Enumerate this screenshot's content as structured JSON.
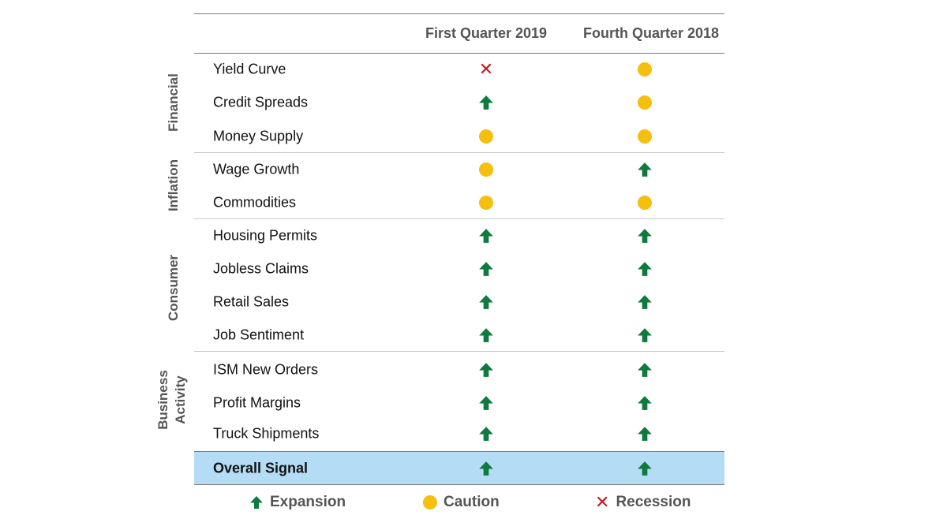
{
  "chart_data": {
    "type": "table",
    "columns": [
      "First Quarter 2019",
      "Fourth Quarter 2018"
    ],
    "groups": [
      {
        "name": "Financial",
        "rows": [
          {
            "label": "Yield Curve",
            "values": [
              "recession",
              "caution"
            ]
          },
          {
            "label": "Credit Spreads",
            "values": [
              "expansion",
              "caution"
            ]
          },
          {
            "label": "Money Supply",
            "values": [
              "caution",
              "caution"
            ]
          }
        ]
      },
      {
        "name": "Inflation",
        "rows": [
          {
            "label": "Wage Growth",
            "values": [
              "caution",
              "expansion"
            ]
          },
          {
            "label": "Commodities",
            "values": [
              "caution",
              "caution"
            ]
          }
        ]
      },
      {
        "name": "Consumer",
        "rows": [
          {
            "label": "Housing Permits",
            "values": [
              "expansion",
              "expansion"
            ]
          },
          {
            "label": "Jobless Claims",
            "values": [
              "expansion",
              "expansion"
            ]
          },
          {
            "label": "Retail Sales",
            "values": [
              "expansion",
              "expansion"
            ]
          },
          {
            "label": "Job Sentiment",
            "values": [
              "expansion",
              "expansion"
            ]
          }
        ]
      },
      {
        "name": "Business Activity",
        "rows": [
          {
            "label": "ISM New Orders",
            "values": [
              "expansion",
              "expansion"
            ]
          },
          {
            "label": "Profit Margins",
            "values": [
              "expansion",
              "expansion"
            ]
          },
          {
            "label": "Truck Shipments",
            "values": [
              "expansion",
              "expansion"
            ]
          }
        ]
      }
    ],
    "overall": {
      "label": "Overall Signal",
      "values": [
        "expansion",
        "expansion"
      ]
    },
    "legend": [
      {
        "key": "expansion",
        "label": "Expansion",
        "icon": "up-arrow-icon",
        "color": "#0e7a3e"
      },
      {
        "key": "caution",
        "label": "Caution",
        "icon": "circle-icon",
        "color": "#f5bf0f"
      },
      {
        "key": "recession",
        "label": "Recession",
        "icon": "x-icon",
        "color": "#c4161c"
      }
    ],
    "highlight_color": "#b4dcf4"
  }
}
